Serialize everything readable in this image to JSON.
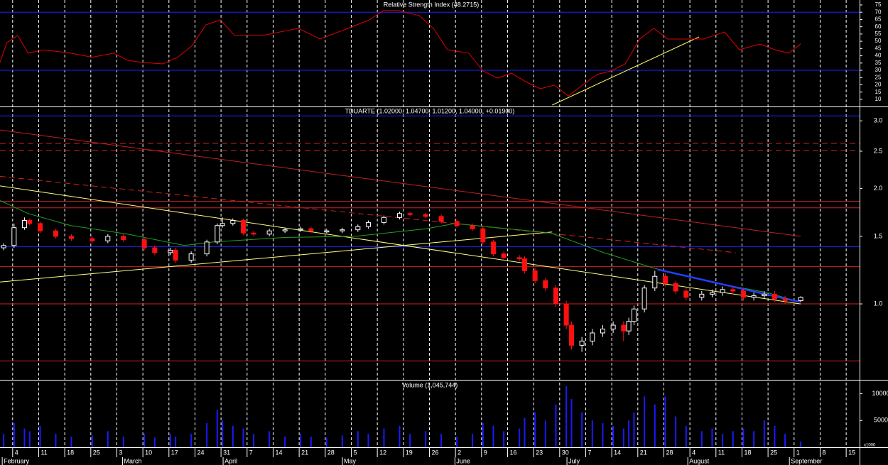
{
  "chart_data": [
    {
      "type": "line",
      "title": "Relative Strength Index (48.2715)",
      "color": "#e00000",
      "x": [
        -2.7,
        -1.4,
        0.7,
        2.7,
        5.5,
        8.2,
        10.9,
        15,
        19.1,
        21.8,
        24.6,
        28.6,
        31.4,
        34.1,
        36.8,
        39.6,
        42.3,
        47.7,
        54.6,
        58.7,
        64.1,
        68.2,
        70.9,
        73.7,
        77.8,
        80.5,
        83.2,
        87.3,
        90,
        92.8,
        95.5,
        98.2,
        101,
        103.7,
        106.4,
        109.1,
        111.9,
        114.6,
        117.3,
        120.1,
        122.8,
        125.5,
        128.2,
        132.3,
        136.4,
        139.2,
        143.2,
        146,
        148.7,
        151
      ],
      "values": [
        35.4,
        49,
        54,
        41.8,
        44,
        43,
        41.8,
        39,
        41.8,
        36.9,
        35.4,
        34.4,
        39,
        46.7,
        61.3,
        64.7,
        54,
        54,
        58.9,
        51.5,
        58.9,
        64.7,
        71.1,
        71.1,
        67.7,
        58.9,
        44.2,
        41.8,
        29.6,
        24.7,
        28,
        22.2,
        17.3,
        19.8,
        12.4,
        19.8,
        27.1,
        29.6,
        34.4,
        51.5,
        58.9,
        51.5,
        51.5,
        51.5,
        56.4,
        44.2,
        48.1,
        44.2,
        41.8,
        48.27
      ],
      "ylim": [
        5.1,
        78.4
      ],
      "yticks": [
        10,
        15,
        20,
        25,
        30,
        35,
        40,
        45,
        50,
        55,
        60,
        65,
        70,
        75
      ],
      "levels": [
        {
          "value": 70,
          "color": "#2020ff"
        },
        {
          "value": 30,
          "color": "#2020ff"
        }
      ],
      "lines": [
        {
          "color": "#ffff66",
          "x": [
            103.3,
            131.5
          ],
          "values": [
            6.1,
            53
          ]
        }
      ]
    },
    {
      "type": "candlestick",
      "title": "TDUARTE (1.02000, 1.04700, 1.01200, 1.04000, +0.01900)",
      "log_scale": true,
      "up_color": "#ffffff",
      "down_color": "#ff1010",
      "x": [
        -2,
        0,
        2,
        3,
        5,
        8,
        11,
        15,
        18,
        21,
        25,
        27,
        30,
        31,
        34,
        37,
        39,
        40,
        42,
        44,
        46,
        49,
        52,
        55,
        57,
        60,
        63,
        66,
        68,
        71,
        74,
        76,
        79,
        82,
        85,
        88,
        90,
        92,
        94,
        97,
        98,
        100,
        102,
        104,
        106,
        107,
        109,
        111,
        113,
        115,
        117,
        118,
        119,
        121,
        123,
        125,
        127,
        129,
        132,
        134,
        136,
        138,
        140,
        142,
        144,
        146,
        148,
        151
      ],
      "open": [
        1.4,
        1.42,
        1.58,
        1.65,
        1.62,
        1.55,
        1.5,
        1.48,
        1.46,
        1.5,
        1.47,
        1.4,
        1.36,
        1.38,
        1.3,
        1.35,
        1.45,
        1.6,
        1.62,
        1.65,
        1.53,
        1.52,
        1.55,
        1.56,
        1.57,
        1.54,
        1.55,
        1.56,
        1.59,
        1.63,
        1.68,
        1.72,
        1.71,
        1.69,
        1.64,
        1.6,
        1.57,
        1.45,
        1.35,
        1.32,
        1.31,
        1.22,
        1.15,
        1.1,
        1.0,
        0.88,
        0.78,
        0.8,
        0.84,
        0.86,
        0.88,
        0.85,
        0.9,
        0.97,
        1.1,
        1.18,
        1.13,
        1.08,
        1.04,
        1.06,
        1.07,
        1.09,
        1.08,
        1.04,
        1.05,
        1.06,
        1.03,
        1.02
      ],
      "high": [
        1.44,
        1.62,
        1.68,
        1.67,
        1.64,
        1.57,
        1.52,
        1.5,
        1.52,
        1.52,
        1.49,
        1.42,
        1.4,
        1.4,
        1.37,
        1.47,
        1.62,
        1.68,
        1.67,
        1.67,
        1.55,
        1.57,
        1.58,
        1.59,
        1.59,
        1.57,
        1.58,
        1.61,
        1.65,
        1.7,
        1.74,
        1.74,
        1.73,
        1.71,
        1.66,
        1.62,
        1.59,
        1.47,
        1.37,
        1.34,
        1.33,
        1.24,
        1.17,
        1.12,
        1.02,
        0.9,
        0.82,
        0.86,
        0.88,
        0.9,
        0.9,
        0.92,
        0.99,
        1.12,
        1.22,
        1.2,
        1.15,
        1.1,
        1.08,
        1.09,
        1.11,
        1.11,
        1.1,
        1.07,
        1.08,
        1.08,
        1.05,
        1.047
      ],
      "low": [
        1.38,
        1.4,
        1.56,
        1.6,
        1.53,
        1.48,
        1.46,
        1.44,
        1.44,
        1.45,
        1.38,
        1.34,
        1.34,
        1.28,
        1.28,
        1.33,
        1.43,
        1.58,
        1.6,
        1.51,
        1.5,
        1.5,
        1.53,
        1.54,
        1.53,
        1.53,
        1.53,
        1.54,
        1.57,
        1.61,
        1.66,
        1.69,
        1.67,
        1.62,
        1.58,
        1.55,
        1.43,
        1.33,
        1.3,
        1.29,
        1.2,
        1.13,
        1.08,
        0.98,
        0.86,
        0.76,
        0.75,
        0.78,
        0.82,
        0.84,
        0.8,
        0.83,
        0.88,
        0.95,
        1.08,
        1.11,
        1.06,
        1.02,
        1.02,
        1.04,
        1.05,
        1.06,
        1.02,
        1.02,
        1.03,
        1.01,
        1.0,
        1.012
      ],
      "close": [
        1.42,
        1.58,
        1.65,
        1.62,
        1.55,
        1.5,
        1.48,
        1.46,
        1.5,
        1.47,
        1.4,
        1.36,
        1.38,
        1.3,
        1.35,
        1.45,
        1.6,
        1.62,
        1.65,
        1.53,
        1.52,
        1.55,
        1.56,
        1.57,
        1.55,
        1.55,
        1.56,
        1.59,
        1.63,
        1.68,
        1.72,
        1.71,
        1.69,
        1.64,
        1.6,
        1.57,
        1.45,
        1.35,
        1.32,
        1.31,
        1.22,
        1.15,
        1.1,
        1.0,
        0.88,
        0.78,
        0.8,
        0.84,
        0.86,
        0.88,
        0.85,
        0.9,
        0.97,
        1.1,
        1.18,
        1.13,
        1.08,
        1.04,
        1.06,
        1.07,
        1.09,
        1.08,
        1.04,
        1.05,
        1.06,
        1.03,
        1.02,
        1.04
      ],
      "ylim": [
        0.634,
        3.27
      ],
      "yticks": [
        {
          "value": 1,
          "label": "1.0"
        },
        {
          "value": 1.5,
          "label": "1.5"
        },
        {
          "value": 2,
          "label": "2.0"
        },
        {
          "value": 2.5,
          "label": "2.5"
        },
        {
          "value": 3,
          "label": "3.0"
        }
      ],
      "levels": [
        {
          "value": 3.09,
          "color": "#2020ff"
        },
        {
          "value": 2.62,
          "color": "#d02020",
          "dashed": true
        },
        {
          "value": 2.51,
          "color": "#d02020",
          "dashed": true
        },
        {
          "value": 1.85,
          "color": "#d02020"
        },
        {
          "value": 1.78,
          "color": "#d02020"
        },
        {
          "value": 1.41,
          "color": "#2020ff"
        },
        {
          "value": 1.25,
          "color": "#d02020"
        },
        {
          "value": 1.0,
          "color": "#d02020"
        },
        {
          "value": 0.71,
          "color": "#d02020"
        }
      ],
      "lines": [
        {
          "color": "#c02020",
          "x": [
            -2.7,
            151
          ],
          "values": [
            2.84,
            1.5
          ]
        },
        {
          "color": "#d02020",
          "dashed": true,
          "x": [
            -2.7,
            138.5
          ],
          "values": [
            2.15,
            1.36
          ]
        },
        {
          "color": "#ffff80",
          "x": [
            -2.7,
            151
          ],
          "values": [
            2.03,
            1.0
          ]
        },
        {
          "color": "#ffff80",
          "x": [
            -2.7,
            103.3
          ],
          "values": [
            1.14,
            1.54
          ]
        },
        {
          "color": "#20a020",
          "x": [
            -2.7,
            2.7,
            10.9,
            21.8,
            32.7,
            38.2,
            51.8,
            65.5,
            79.1,
            84.6,
            92.8,
            103,
            113.2,
            122.8,
            133.7,
            144.6,
            151
          ],
          "values": [
            1.86,
            1.72,
            1.6,
            1.52,
            1.42,
            1.45,
            1.49,
            1.5,
            1.57,
            1.62,
            1.58,
            1.53,
            1.36,
            1.24,
            1.14,
            1.07,
            1.01
          ]
        },
        {
          "color": "#2040ff",
          "width": 2.5,
          "x": [
            123.5,
            151
          ],
          "values": [
            1.23,
            1.01
          ]
        }
      ]
    },
    {
      "type": "bar",
      "title": "Volume (1,045,744)",
      "color": "#1a1aff",
      "unit_label": "x1000",
      "x": [
        -2,
        0,
        2,
        3,
        5,
        8,
        11,
        15,
        18,
        21,
        25,
        27,
        30,
        31,
        34,
        37,
        39,
        40,
        42,
        44,
        46,
        49,
        52,
        55,
        57,
        60,
        63,
        66,
        68,
        71,
        74,
        76,
        79,
        82,
        85,
        88,
        90,
        92,
        94,
        97,
        98,
        100,
        102,
        104,
        106,
        107,
        109,
        111,
        113,
        115,
        117,
        118,
        119,
        121,
        123,
        125,
        127,
        129,
        132,
        134,
        136,
        138,
        140,
        142,
        144,
        146,
        148,
        151
      ],
      "values": [
        2500,
        4500,
        3500,
        3000,
        4000,
        2500,
        2000,
        2200,
        3000,
        2000,
        2500,
        1800,
        2500,
        2000,
        2500,
        4500,
        7000,
        5000,
        4000,
        3500,
        2500,
        3000,
        2000,
        2500,
        2000,
        1800,
        2200,
        3000,
        2500,
        3500,
        4000,
        2500,
        3000,
        2500,
        2000,
        2500,
        4500,
        4000,
        3000,
        3500,
        5500,
        6500,
        5000,
        8000,
        11400,
        9000,
        6500,
        5000,
        4500,
        4000,
        3500,
        5000,
        6500,
        9500,
        8000,
        9500,
        5750,
        4000,
        3000,
        3500,
        2500,
        3000,
        3500,
        3000,
        5000,
        4000,
        2500,
        1045.744
      ],
      "ylim": [
        0,
        12600
      ],
      "yticks": [
        5000,
        10000
      ],
      "xlim": [
        -2.7,
        162.3
      ],
      "xticks": [
        {
          "value": 0,
          "label": "4"
        },
        {
          "value": 5,
          "label": "11"
        },
        {
          "value": 10,
          "label": "18"
        },
        {
          "value": 15,
          "label": "25"
        },
        {
          "value": 20,
          "label": "3"
        },
        {
          "value": 25,
          "label": "10"
        },
        {
          "value": 30,
          "label": "17"
        },
        {
          "value": 35,
          "label": "24"
        },
        {
          "value": 40,
          "label": "31"
        },
        {
          "value": 45,
          "label": "7"
        },
        {
          "value": 50,
          "label": "14"
        },
        {
          "value": 55,
          "label": "21"
        },
        {
          "value": 60,
          "label": "28"
        },
        {
          "value": 65,
          "label": "5"
        },
        {
          "value": 70,
          "label": "12"
        },
        {
          "value": 75,
          "label": "19"
        },
        {
          "value": 80,
          "label": "26"
        },
        {
          "value": 85,
          "label": "2"
        },
        {
          "value": 90,
          "label": "9"
        },
        {
          "value": 95,
          "label": "16"
        },
        {
          "value": 100,
          "label": "23"
        },
        {
          "value": 105,
          "label": "30"
        },
        {
          "value": 110,
          "label": "7"
        },
        {
          "value": 115,
          "label": "14"
        },
        {
          "value": 120,
          "label": "21"
        },
        {
          "value": 125,
          "label": "28"
        },
        {
          "value": 130,
          "label": "4"
        },
        {
          "value": 135,
          "label": "11"
        },
        {
          "value": 140,
          "label": "18"
        },
        {
          "value": 145,
          "label": "25"
        },
        {
          "value": 150,
          "label": "1"
        },
        {
          "value": 155,
          "label": "8"
        },
        {
          "value": 160,
          "label": "15"
        }
      ],
      "xmonth_ticks": [
        {
          "value": -2,
          "label": "February"
        },
        {
          "value": 21.1,
          "label": "March"
        },
        {
          "value": 40.4,
          "label": "April"
        },
        {
          "value": 63.3,
          "label": "May"
        },
        {
          "value": 84.9,
          "label": "June"
        },
        {
          "value": 106.4,
          "label": "July"
        },
        {
          "value": 129.6,
          "label": "August"
        },
        {
          "value": 149.1,
          "label": "September"
        }
      ]
    }
  ]
}
